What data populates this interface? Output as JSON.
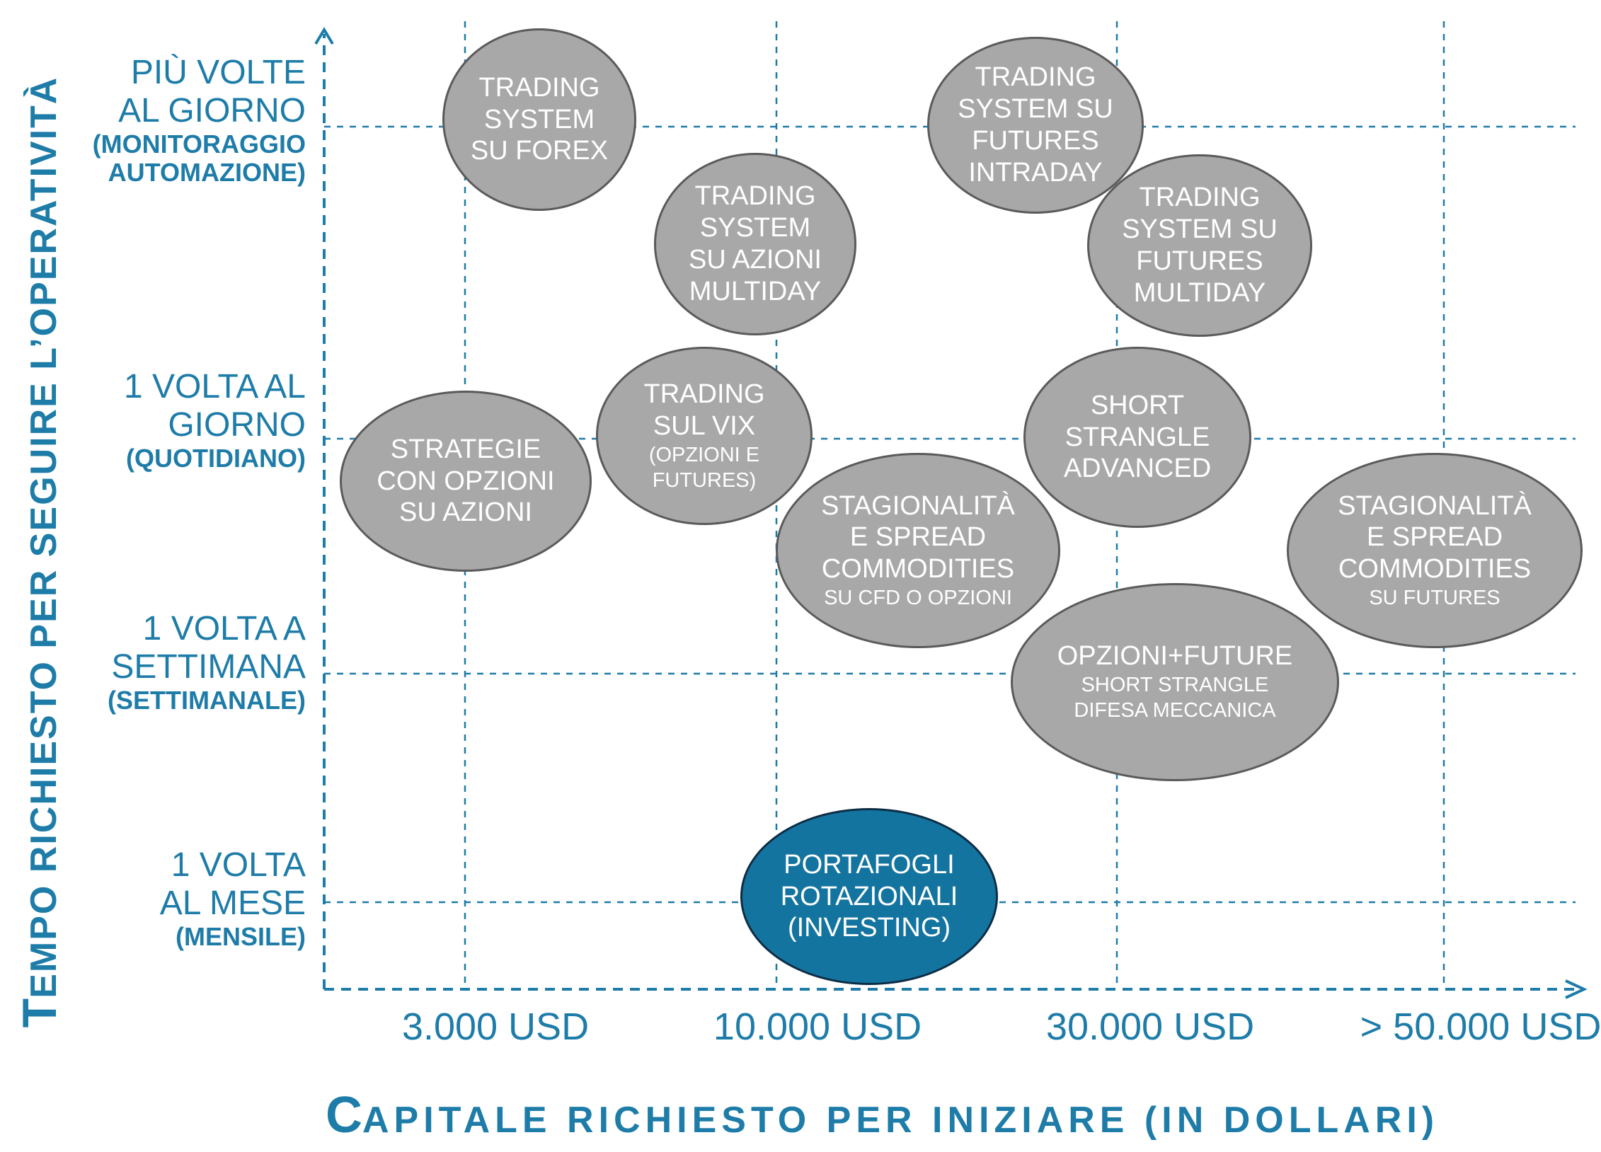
{
  "y_axis": {
    "title_initial": "T",
    "title_rest": "EMPO RICHIESTO PER SEGUIRE  L’OPERATIVITÀ",
    "levels": [
      {
        "lines": [
          "PIÙ VOLTE",
          "AL GIORNO"
        ],
        "sub": [
          "(MONITORAGGIO",
          "AUTOMAZIONE)"
        ]
      },
      {
        "lines": [
          "1 VOLTA AL",
          "GIORNO"
        ],
        "sub": [
          "(QUOTIDIANO)"
        ]
      },
      {
        "lines": [
          "1 VOLTA A",
          "SETTIMANA"
        ],
        "sub": [
          "(SETTIMANALE)"
        ]
      },
      {
        "lines": [
          "1 VOLTA",
          "AL MESE"
        ],
        "sub": [
          "(MENSILE)"
        ]
      }
    ]
  },
  "x_axis": {
    "title_initial": "C",
    "title_rest": "APITALE RICHIESTO PER INIZIARE (IN DOLLARI)",
    "levels": [
      "3.000 USD",
      "10.000 USD",
      "30.000 USD",
      "> 50.000 USD"
    ]
  },
  "colors": {
    "axis": "#1e7ca8",
    "bubble_gray": "#a8a8a8",
    "bubble_blue": "#1474a0"
  },
  "strategies": [
    {
      "id": "forex",
      "lines": [
        "TRADING",
        "SYSTEM",
        "SU FOREX"
      ],
      "sub": []
    },
    {
      "id": "futures-intraday",
      "lines": [
        "TRADING",
        "SYSTEM SU",
        "FUTURES",
        "INTRADAY"
      ],
      "sub": []
    },
    {
      "id": "azioni-multiday",
      "lines": [
        "TRADING",
        "SYSTEM",
        "SU AZIONI",
        "MULTIDAY"
      ],
      "sub": []
    },
    {
      "id": "futures-multiday",
      "lines": [
        "TRADING",
        "SYSTEM SU",
        "FUTURES",
        "MULTIDAY"
      ],
      "sub": []
    },
    {
      "id": "opzioni-azioni",
      "lines": [
        "STRATEGIE",
        "CON OPZIONI",
        "SU AZIONI"
      ],
      "sub": []
    },
    {
      "id": "vix",
      "lines": [
        "TRADING",
        "SUL VIX"
      ],
      "sub": [
        "(OPZIONI E",
        "FUTURES)"
      ]
    },
    {
      "id": "short-strangle",
      "lines": [
        "SHORT",
        "STRANGLE",
        "ADVANCED"
      ],
      "sub": []
    },
    {
      "id": "stag-cfd",
      "lines": [
        "STAGIONALITÀ",
        "E SPREAD",
        "COMMODITIES"
      ],
      "sub": [
        "SU CFD O OPZIONI"
      ]
    },
    {
      "id": "stag-futures",
      "lines": [
        "STAGIONALITÀ",
        "E SPREAD",
        "COMMODITIES"
      ],
      "sub": [
        "SU FUTURES"
      ]
    },
    {
      "id": "opzioni-future",
      "lines": [
        "OPZIONI+FUTURE"
      ],
      "sub": [
        "SHORT STRANGLE",
        "DIFESA MECCANICA"
      ]
    },
    {
      "id": "portafogli",
      "lines": [
        "PORTAFOGLI",
        "ROTAZIONALI",
        "(INVESTING)"
      ],
      "sub": []
    }
  ]
}
